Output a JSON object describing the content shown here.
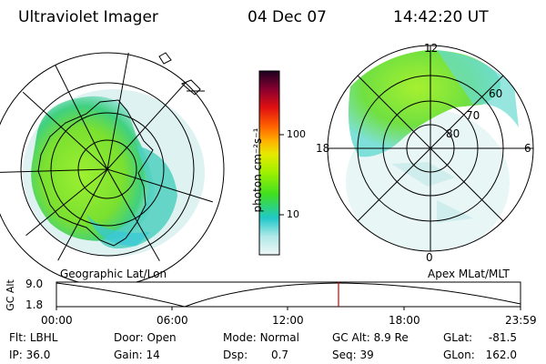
{
  "header": {
    "instrument": "Ultraviolet Imager",
    "date": "04 Dec 07",
    "time": "14:42:20 UT"
  },
  "left_map": {
    "caption": "Geographic Lat/Lon"
  },
  "right_map": {
    "caption": "Apex MLat/MLT",
    "mlt_labels": [
      "12",
      "6",
      "0",
      "18"
    ],
    "mlat_labels": [
      "60",
      "70",
      "80"
    ]
  },
  "colorbar": {
    "unit_label": "photon cm⁻²s⁻¹",
    "tick_labels": [
      "100",
      "10"
    ],
    "colors": [
      "#1a0020",
      "#5a0030",
      "#a00020",
      "#e01010",
      "#ff6a00",
      "#ffb400",
      "#f0e000",
      "#b0f000",
      "#40e020",
      "#20c8c8",
      "#a0e8e8",
      "#e8f4f4"
    ]
  },
  "altitude_plot": {
    "ylabel": "GC Alt",
    "y_ticks": [
      "9.0",
      "1.8"
    ],
    "x_ticks": [
      "00:00",
      "06:00",
      "12:00",
      "18:00",
      "23:59"
    ],
    "current_time_marker_color": "#cc0000"
  },
  "status": {
    "row1": [
      {
        "label": "Flt:",
        "value": "LBHL"
      },
      {
        "label": "Door:",
        "value": "Open"
      },
      {
        "label": "Mode:",
        "value": "Normal"
      },
      {
        "label": "GC Alt:",
        "value": "8.9 Re"
      },
      {
        "label": "GLat:",
        "value": "-81.5"
      }
    ],
    "row2": [
      {
        "label": "IP:",
        "value": "36.0"
      },
      {
        "label": "Gain:",
        "value": "14"
      },
      {
        "label": "Dsp:",
        "value": "0.7"
      },
      {
        "label": "Seq:",
        "value": "39"
      },
      {
        "label": "GLon:",
        "value": "162.0"
      }
    ]
  }
}
